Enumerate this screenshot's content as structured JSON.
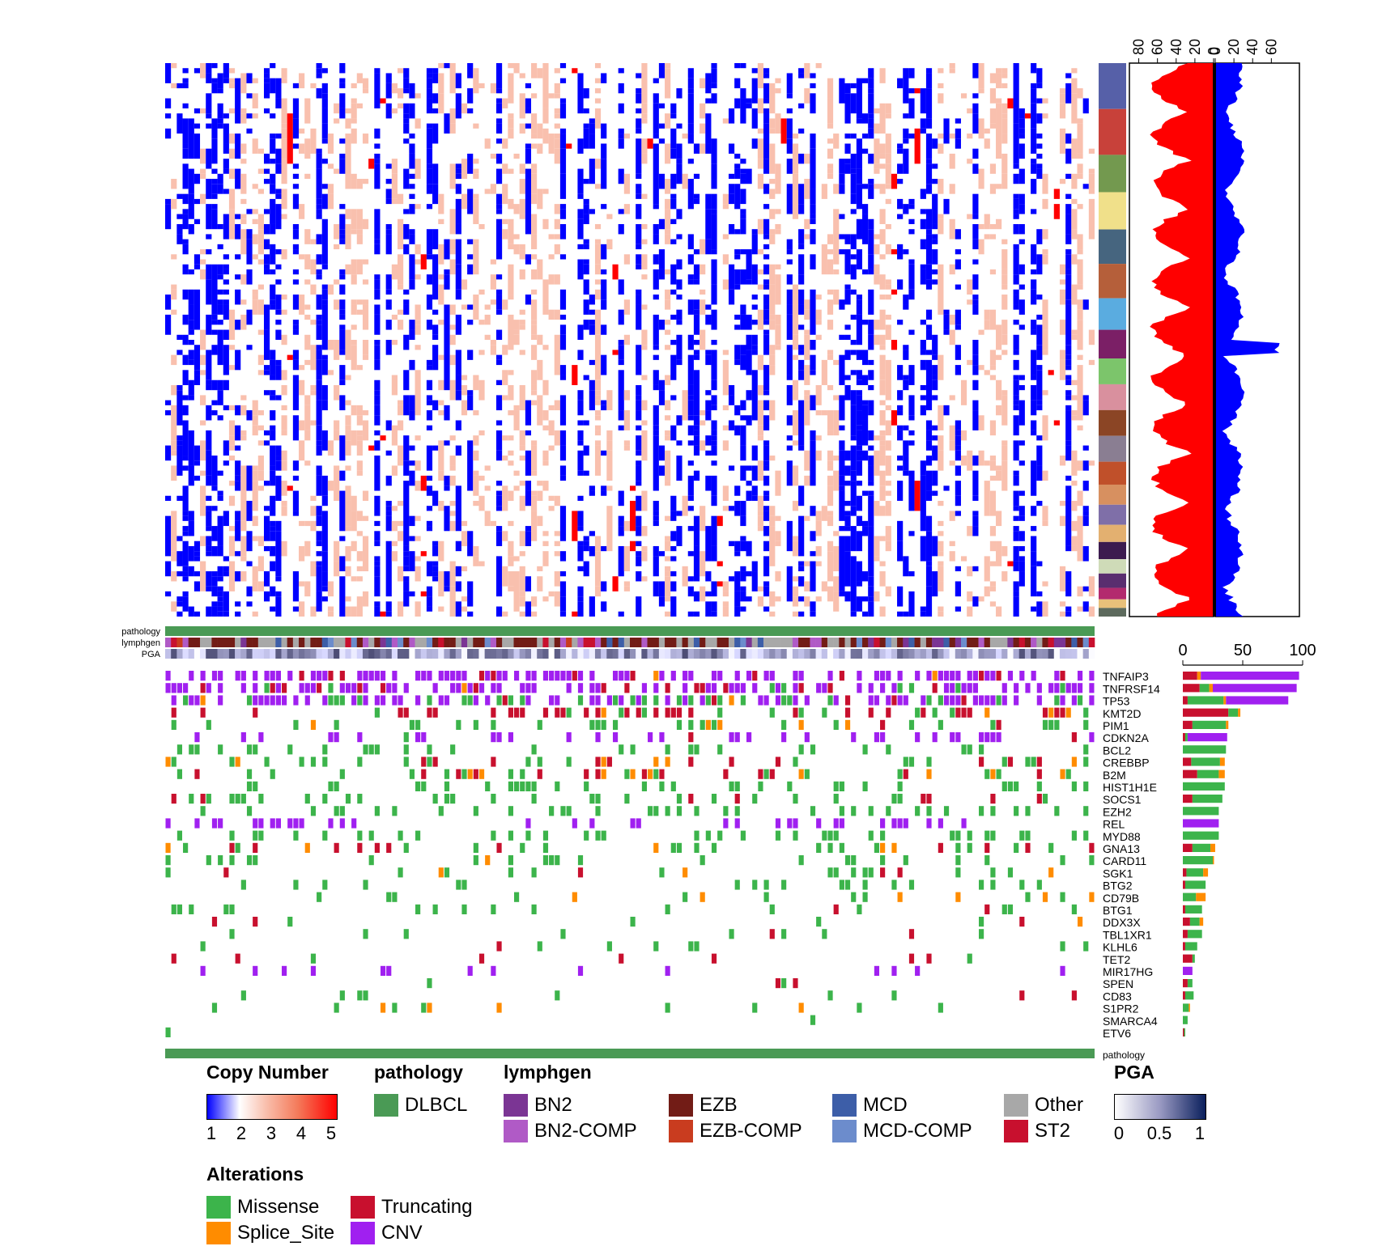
{
  "chart_data": {
    "type": "heatmap",
    "description_visible": "Oncoplot with copy-number heatmap, sample annotation tracks, gene alteration matrix and marginal bar charts",
    "track_labels": [
      "pathology",
      "lymphgen",
      "PGA"
    ],
    "genes": [
      {
        "name": "TNFAIP3",
        "missense": 0,
        "truncating": 12,
        "splice": 3,
        "cnv": 82
      },
      {
        "name": "TNFRSF14",
        "missense": 8,
        "truncating": 14,
        "splice": 3,
        "cnv": 70
      },
      {
        "name": "TP53",
        "missense": 30,
        "truncating": 4,
        "splice": 2,
        "cnv": 52
      },
      {
        "name": "KMT2D",
        "missense": 8,
        "truncating": 38,
        "splice": 2,
        "cnv": 0
      },
      {
        "name": "PIM1",
        "missense": 28,
        "truncating": 8,
        "splice": 2,
        "cnv": 0
      },
      {
        "name": "CDKN2A",
        "missense": 2,
        "truncating": 2,
        "splice": 0,
        "cnv": 33
      },
      {
        "name": "BCL2",
        "missense": 36,
        "truncating": 0,
        "splice": 0,
        "cnv": 0
      },
      {
        "name": "CREBBP",
        "missense": 24,
        "truncating": 7,
        "splice": 4,
        "cnv": 0
      },
      {
        "name": "B2M",
        "missense": 18,
        "truncating": 12,
        "splice": 5,
        "cnv": 0
      },
      {
        "name": "HIST1H1E",
        "missense": 35,
        "truncating": 0,
        "splice": 0,
        "cnv": 0
      },
      {
        "name": "SOCS1",
        "missense": 25,
        "truncating": 8,
        "splice": 0,
        "cnv": 0
      },
      {
        "name": "EZH2",
        "missense": 30,
        "truncating": 0,
        "splice": 0,
        "cnv": 0
      },
      {
        "name": "REL",
        "missense": 0,
        "truncating": 0,
        "splice": 0,
        "cnv": 30
      },
      {
        "name": "MYD88",
        "missense": 30,
        "truncating": 0,
        "splice": 0,
        "cnv": 0
      },
      {
        "name": "GNA13",
        "missense": 15,
        "truncating": 8,
        "splice": 4,
        "cnv": 0
      },
      {
        "name": "CARD11",
        "missense": 25,
        "truncating": 0,
        "splice": 1,
        "cnv": 0
      },
      {
        "name": "SGK1",
        "missense": 14,
        "truncating": 3,
        "splice": 4,
        "cnv": 0
      },
      {
        "name": "BTG2",
        "missense": 17,
        "truncating": 2,
        "splice": 0,
        "cnv": 0
      },
      {
        "name": "CD79B",
        "missense": 11,
        "truncating": 0,
        "splice": 8,
        "cnv": 0
      },
      {
        "name": "BTG1",
        "missense": 14,
        "truncating": 2,
        "splice": 0,
        "cnv": 0
      },
      {
        "name": "DDX3X",
        "missense": 8,
        "truncating": 6,
        "splice": 3,
        "cnv": 0
      },
      {
        "name": "TBL1XR1",
        "missense": 12,
        "truncating": 4,
        "splice": 0,
        "cnv": 0
      },
      {
        "name": "KLHL6",
        "missense": 10,
        "truncating": 2,
        "splice": 0,
        "cnv": 0
      },
      {
        "name": "TET2",
        "missense": 2,
        "truncating": 8,
        "splice": 0,
        "cnv": 0
      },
      {
        "name": "MIR17HG",
        "missense": 0,
        "truncating": 0,
        "splice": 0,
        "cnv": 8
      },
      {
        "name": "SPEN",
        "missense": 4,
        "truncating": 4,
        "splice": 0,
        "cnv": 0
      },
      {
        "name": "CD83",
        "missense": 7,
        "truncating": 2,
        "splice": 0,
        "cnv": 0
      },
      {
        "name": "S1PR2",
        "missense": 5,
        "truncating": 0,
        "splice": 1,
        "cnv": 0
      },
      {
        "name": "SMARCA4",
        "missense": 4,
        "truncating": 0,
        "splice": 0,
        "cnv": 0
      },
      {
        "name": "ETV6",
        "missense": 1,
        "truncating": 1,
        "splice": 0,
        "cnv": 0
      }
    ],
    "bar_axis_ticks": [
      "0",
      "50",
      "100"
    ],
    "bar_axis_range": [
      0,
      100
    ],
    "cn_profile_axis": {
      "left_ticks": [
        "80",
        "60",
        "40",
        "20",
        "0"
      ],
      "right_ticks": [
        "0",
        "20",
        "40",
        "60"
      ],
      "left_range": [
        0,
        90
      ],
      "right_range": [
        0,
        90
      ]
    },
    "chromosome_band_colors": [
      "#5660a8",
      "#c8413a",
      "#73994f",
      "#f0e08a",
      "#46657f",
      "#b55f3a",
      "#5aace0",
      "#7b1f66",
      "#7cc56b",
      "#d9909e",
      "#8b4525",
      "#8a7e92",
      "#c0502a",
      "#d79060",
      "#7f6fa8",
      "#e3b070",
      "#3c1b4f",
      "#cfdbb8",
      "#5a2e6f",
      "#b32a6e",
      "#e8c07a",
      "#5d6a5d"
    ],
    "colors": {
      "missense": "#3cb44b",
      "truncating": "#c8102e",
      "splice": "#ff8c00",
      "cnv": "#a020f0",
      "cn_low": "#0000ff",
      "cn_mid": "#ffffff",
      "cn_high": "#ff0000",
      "cn_light": "#f9c0ae",
      "pathology": "#4a9a55",
      "gain": "#ff0000",
      "loss": "#0000ff"
    },
    "n_samples": 160,
    "n_cn_rows": 110
  },
  "legends": {
    "copy_number": {
      "title": "Copy Number",
      "ticks": [
        "1",
        "2",
        "3",
        "4",
        "5"
      ]
    },
    "pathology": {
      "title": "pathology",
      "items": [
        {
          "label": "DLBCL",
          "color": "#4a9a55"
        }
      ]
    },
    "lymphgen": {
      "title": "lymphgen",
      "items": [
        {
          "label": "BN2",
          "color": "#7b3594"
        },
        {
          "label": "BN2-COMP",
          "color": "#b05ac6"
        },
        {
          "label": "EZB",
          "color": "#721c16"
        },
        {
          "label": "EZB-COMP",
          "color": "#c93c1f"
        },
        {
          "label": "MCD",
          "color": "#3d5ea8"
        },
        {
          "label": "MCD-COMP",
          "color": "#6c8ccc"
        },
        {
          "label": "Other",
          "color": "#a8a8a8"
        },
        {
          "label": "ST2",
          "color": "#c8102e"
        }
      ]
    },
    "pga": {
      "title": "PGA",
      "ticks": [
        "0",
        "0.5",
        "1"
      ]
    },
    "alterations": {
      "title": "Alterations",
      "items": [
        {
          "label": "Missense",
          "color": "#3cb44b"
        },
        {
          "label": "Splice_Site",
          "color": "#ff8c00"
        },
        {
          "label": "Truncating",
          "color": "#c8102e"
        },
        {
          "label": "CNV",
          "color": "#a020f0"
        }
      ]
    }
  }
}
